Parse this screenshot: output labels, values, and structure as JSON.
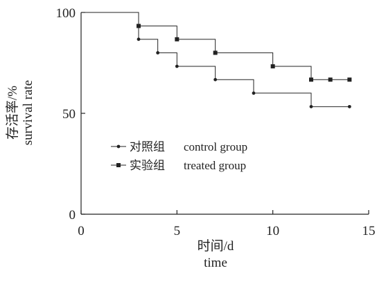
{
  "chart_data": {
    "type": "line",
    "step": true,
    "xlabel_cn": "时间/d",
    "xlabel_en": "time",
    "ylabel_cn": "存活率/%",
    "ylabel_en": "survival rate",
    "xlim": [
      0,
      15
    ],
    "ylim": [
      0,
      100
    ],
    "xticks": [
      0,
      5,
      10,
      15
    ],
    "yticks": [
      0,
      50,
      100
    ],
    "x_tick_labels": [
      "0",
      "5",
      "10",
      "15"
    ],
    "y_tick_labels": [
      "0",
      "50",
      "100"
    ],
    "grid": false,
    "legend_position": "middle-left",
    "series": [
      {
        "name_cn": "对照组",
        "name_en": "control group",
        "marker": "circle",
        "color": "#222222",
        "x": [
          0,
          3,
          4,
          5,
          7,
          9,
          12,
          14
        ],
        "y": [
          100,
          86.7,
          80,
          73.3,
          66.7,
          60,
          53.3,
          53.3
        ],
        "marked": [
          false,
          true,
          true,
          true,
          true,
          true,
          true,
          true
        ]
      },
      {
        "name_cn": "实验组",
        "name_en": "treated group",
        "marker": "square",
        "color": "#222222",
        "x": [
          0,
          3,
          5,
          7,
          10,
          12,
          13,
          14
        ],
        "y": [
          100,
          93.3,
          86.7,
          80,
          73.3,
          66.7,
          66.7,
          66.7
        ],
        "marked": [
          false,
          true,
          true,
          true,
          true,
          true,
          true,
          true
        ]
      }
    ]
  }
}
